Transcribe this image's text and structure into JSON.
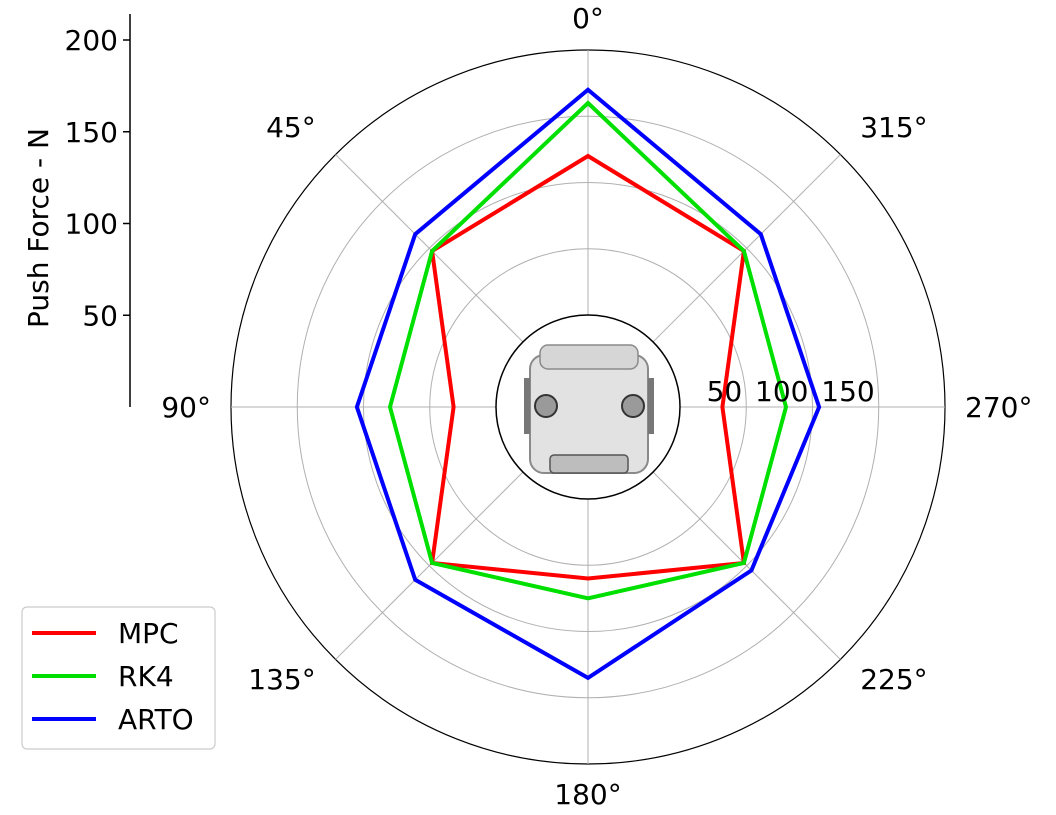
{
  "chart_data": {
    "type": "radar",
    "angle_labels": [
      "0°",
      "315°",
      "270°",
      "225°",
      "180°",
      "135°",
      "90°",
      "45°"
    ],
    "angles_deg": [
      0,
      315,
      270,
      225,
      180,
      135,
      90,
      45
    ],
    "radial_ticks": [
      50,
      100,
      150
    ],
    "rlim": [
      -50,
      200
    ],
    "ylabel": "Push Force - N",
    "side_axis_ticks": [
      50,
      100,
      150,
      200
    ],
    "series": [
      {
        "name": "MPC",
        "color": "#ff0000",
        "values": [
          120,
          97,
          32,
          97,
          60,
          97,
          32,
          97
        ]
      },
      {
        "name": "RK4",
        "color": "#00e000",
        "values": [
          160,
          97,
          80,
          97,
          75,
          97,
          80,
          97
        ]
      },
      {
        "name": "ARTO",
        "color": "#0000ff",
        "values": [
          170,
          115,
          105,
          105,
          135,
          115,
          105,
          115
        ]
      }
    ],
    "grid": true,
    "legend_position": "lower-left"
  }
}
